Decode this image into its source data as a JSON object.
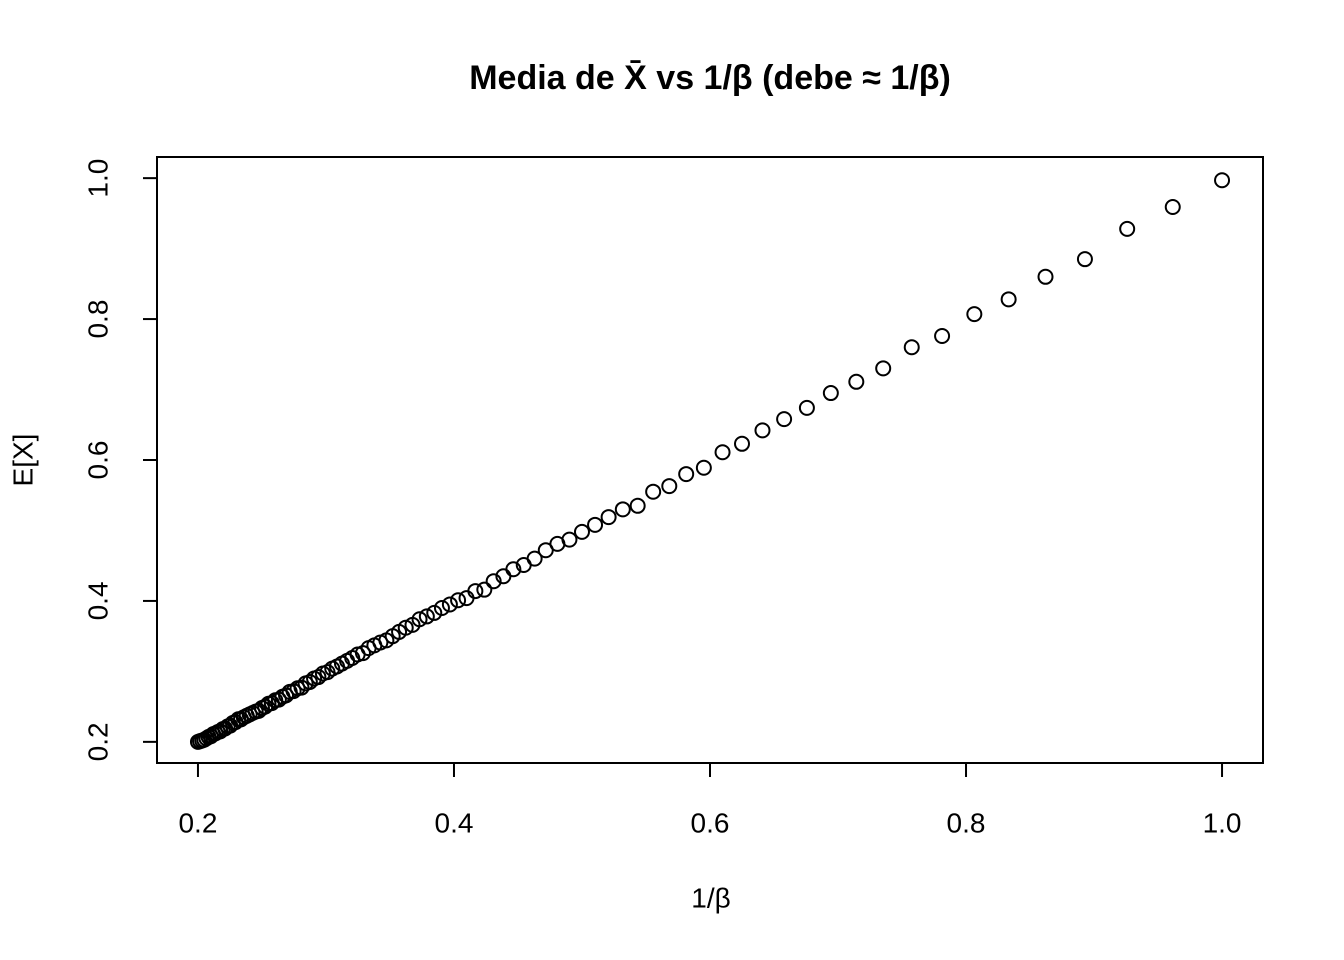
{
  "chart_data": {
    "type": "scatter",
    "title": "Media de X̄ vs 1/β (debe ≈ 1/β)",
    "x_label": "1/β",
    "y_label": "E[X]",
    "xlim": [
      0.168,
      1.032
    ],
    "ylim": [
      0.17,
      1.03
    ],
    "xticks": [
      {
        "value": 0.2,
        "label": "0.2"
      },
      {
        "value": 0.4,
        "label": "0.4"
      },
      {
        "value": 0.6,
        "label": "0.6"
      },
      {
        "value": 0.8,
        "label": "0.8"
      },
      {
        "value": 1.0,
        "label": "1.0"
      }
    ],
    "yticks": [
      {
        "value": 0.2,
        "label": "0.2"
      },
      {
        "value": 0.4,
        "label": "0.4"
      },
      {
        "value": 0.6,
        "label": "0.6"
      },
      {
        "value": 0.8,
        "label": "0.8"
      },
      {
        "value": 1.0,
        "label": "1.0"
      }
    ],
    "color": "#000000",
    "grid": false,
    "x": [
      1.0,
      0.9615,
      0.9259,
      0.8929,
      0.8621,
      0.8333,
      0.8065,
      0.7813,
      0.7576,
      0.7353,
      0.7143,
      0.6944,
      0.6757,
      0.6579,
      0.641,
      0.625,
      0.6098,
      0.5952,
      0.5814,
      0.5682,
      0.5556,
      0.5435,
      0.5319,
      0.5208,
      0.5102,
      0.5,
      0.4902,
      0.4808,
      0.4717,
      0.463,
      0.4545,
      0.4464,
      0.4386,
      0.431,
      0.4237,
      0.4167,
      0.4098,
      0.4032,
      0.3968,
      0.3906,
      0.3846,
      0.3788,
      0.3731,
      0.3676,
      0.3623,
      0.3571,
      0.3521,
      0.3472,
      0.3425,
      0.3378,
      0.3333,
      0.3289,
      0.3247,
      0.3205,
      0.3165,
      0.3125,
      0.3086,
      0.3049,
      0.3012,
      0.2976,
      0.2941,
      0.2907,
      0.2874,
      0.2841,
      0.2809,
      0.2778,
      0.2747,
      0.2717,
      0.2688,
      0.266,
      0.2632,
      0.2604,
      0.2577,
      0.2551,
      0.2525,
      0.25,
      0.2475,
      0.2451,
      0.2427,
      0.2404,
      0.2381,
      0.2358,
      0.2336,
      0.2315,
      0.2294,
      0.2273,
      0.2252,
      0.2232,
      0.2212,
      0.2193,
      0.2174,
      0.2155,
      0.2137,
      0.2119,
      0.2101,
      0.2083,
      0.2066,
      0.2049,
      0.2033,
      0.2016,
      0.2
    ],
    "values": [
      0.997,
      0.959,
      0.928,
      0.885,
      0.86,
      0.828,
      0.807,
      0.776,
      0.76,
      0.73,
      0.711,
      0.695,
      0.674,
      0.658,
      0.642,
      0.623,
      0.611,
      0.589,
      0.58,
      0.563,
      0.555,
      0.535,
      0.53,
      0.519,
      0.508,
      0.498,
      0.487,
      0.481,
      0.472,
      0.46,
      0.451,
      0.445,
      0.435,
      0.428,
      0.416,
      0.414,
      0.404,
      0.401,
      0.395,
      0.39,
      0.383,
      0.378,
      0.374,
      0.366,
      0.362,
      0.356,
      0.35,
      0.344,
      0.341,
      0.337,
      0.333,
      0.326,
      0.324,
      0.319,
      0.315,
      0.311,
      0.307,
      0.304,
      0.299,
      0.297,
      0.292,
      0.29,
      0.285,
      0.283,
      0.277,
      0.276,
      0.272,
      0.271,
      0.266,
      0.264,
      0.26,
      0.259,
      0.255,
      0.254,
      0.25,
      0.248,
      0.244,
      0.243,
      0.241,
      0.239,
      0.237,
      0.235,
      0.232,
      0.232,
      0.228,
      0.227,
      0.223,
      0.222,
      0.219,
      0.218,
      0.215,
      0.214,
      0.212,
      0.211,
      0.208,
      0.207,
      0.205,
      0.203,
      0.202,
      0.201,
      0.2
    ]
  }
}
